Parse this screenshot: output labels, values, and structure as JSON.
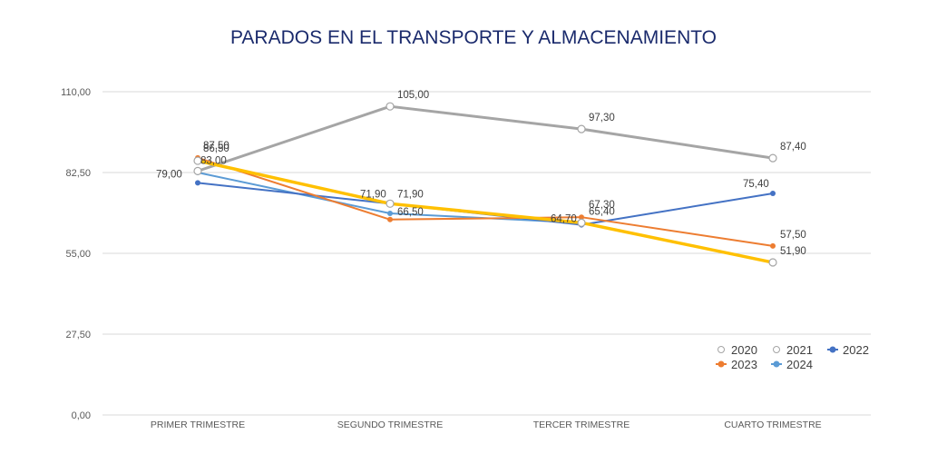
{
  "chart_data": {
    "type": "line",
    "title": "PARADOS EN EL TRANSPORTE Y ALMACENAMIENTO",
    "xlabel": "",
    "ylabel": "",
    "categories": [
      "PRIMER TRIMESTRE",
      "SEGUNDO TRIMESTRE",
      "TERCER TRIMESTRE",
      "CUARTO TRIMESTRE"
    ],
    "ylim": [
      0,
      110
    ],
    "yticks": [
      0,
      27.5,
      55,
      82.5,
      110
    ],
    "ytick_labels": [
      "0,00",
      "27,50",
      "55,00",
      "82,50",
      "110,00"
    ],
    "grid": true,
    "legend_position": "bottom-right",
    "series": [
      {
        "name": "2020",
        "color": "#a5a5a5",
        "marker": "hollow-circle",
        "values": [
          83.0,
          105.0,
          97.3,
          87.4
        ],
        "labels": [
          "83,00",
          "105,00",
          "97,30",
          "87,40"
        ]
      },
      {
        "name": "2021",
        "color": "#ffc000",
        "marker": "hollow-circle",
        "values": [
          86.5,
          71.9,
          65.4,
          51.9
        ],
        "labels": [
          "86,50",
          "71,90",
          "65,40",
          "51,90"
        ]
      },
      {
        "name": "2022",
        "color": "#4472c4",
        "marker": "filled-circle",
        "values": [
          79.0,
          71.9,
          64.7,
          75.4
        ],
        "labels": [
          "79,00",
          "71,90",
          "64,70",
          "75,40"
        ]
      },
      {
        "name": "2023",
        "color": "#ed7d31",
        "marker": "filled-circle",
        "values": [
          87.5,
          66.5,
          67.3,
          57.5
        ],
        "labels": [
          "87,50",
          "66,50",
          "67,30",
          "57,50"
        ]
      },
      {
        "name": "2024",
        "color": "#5b9bd5",
        "marker": "filled-circle",
        "values": [
          82.5,
          68.6,
          65.4
        ],
        "labels": [
          "",
          "",
          ""
        ]
      }
    ]
  }
}
